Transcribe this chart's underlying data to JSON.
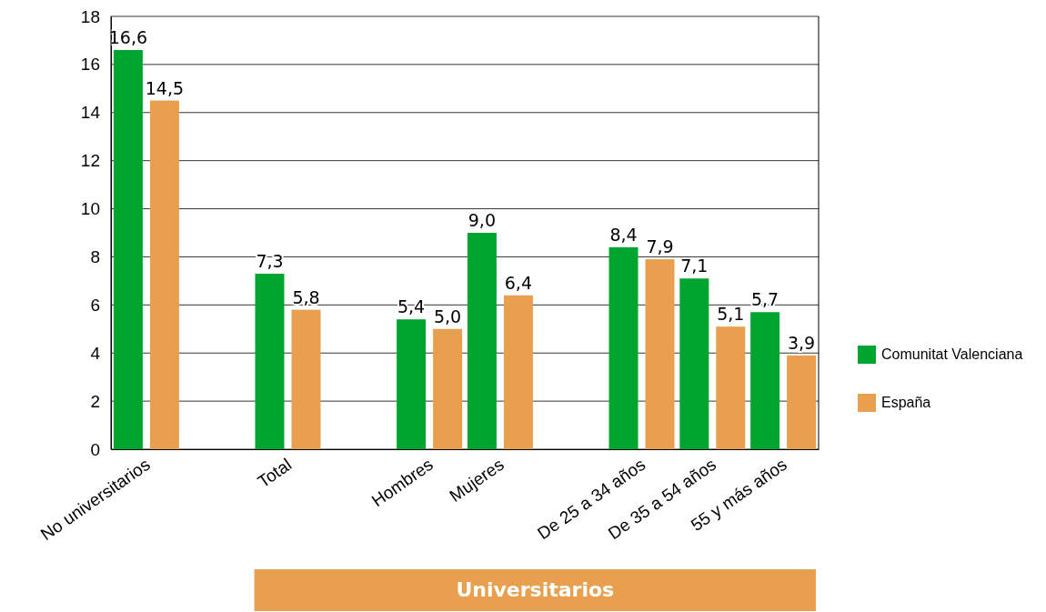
{
  "chart_data": {
    "type": "bar",
    "categories": [
      "No universitarios",
      null,
      "Total",
      null,
      "Hombres",
      "Mujeres",
      null,
      "De 25 a 34 años",
      "De 35 a 54 años",
      "55 y más años"
    ],
    "series": [
      {
        "name": "Comunitat Valenciana",
        "color": "#00a52f",
        "values": [
          16.6,
          null,
          7.3,
          null,
          5.4,
          9.0,
          null,
          8.4,
          7.1,
          5.7
        ],
        "value_labels": [
          "16,6",
          null,
          "7,3",
          null,
          "5,4",
          "9,0",
          null,
          "8,4",
          "7,1",
          "5,7"
        ]
      },
      {
        "name": "España",
        "color": "#e8a04e",
        "values": [
          14.5,
          null,
          5.8,
          null,
          5.0,
          6.4,
          null,
          7.9,
          5.1,
          3.9
        ],
        "value_labels": [
          "14,5",
          null,
          "5,8",
          null,
          "5,0",
          "6,4",
          null,
          "7,9",
          "5,1",
          "3,9"
        ]
      }
    ],
    "ylim": [
      0,
      18
    ],
    "yticks": [
      0,
      2,
      4,
      6,
      8,
      10,
      12,
      14,
      16,
      18
    ],
    "grid": "y",
    "legend": "right",
    "annotations": [
      "Universitarios"
    ]
  }
}
